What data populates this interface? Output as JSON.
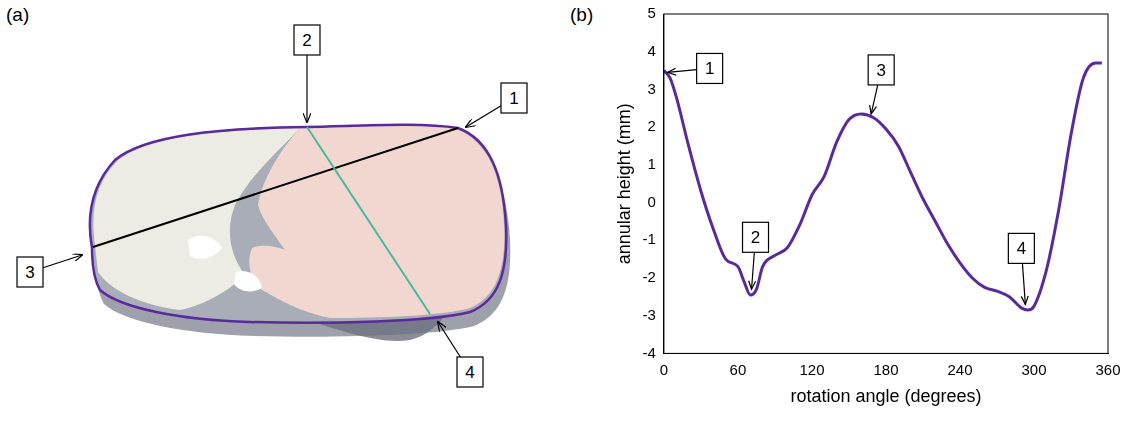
{
  "panel_a": {
    "letter": "(a)",
    "callouts": [
      "1",
      "2",
      "3",
      "4"
    ]
  },
  "chart_data": {
    "panel_label": "(b)",
    "type": "line",
    "x_label": "rotation angle (degrees)",
    "y_label": "annular height (mm)",
    "x": [
      0,
      5,
      10,
      20,
      30,
      40,
      50,
      60,
      65,
      70,
      75,
      80,
      90,
      100,
      110,
      120,
      130,
      140,
      150,
      160,
      170,
      180,
      190,
      200,
      210,
      220,
      230,
      240,
      250,
      260,
      270,
      280,
      290,
      295,
      300,
      310,
      320,
      330,
      340,
      350,
      355
    ],
    "series": [
      {
        "name": "annular height",
        "color": "#5a2a9c",
        "values": [
          3.5,
          3.3,
          2.8,
          1.5,
          0.3,
          -0.7,
          -1.5,
          -1.7,
          -2.1,
          -2.45,
          -2.3,
          -1.7,
          -1.4,
          -1.2,
          -0.6,
          0.2,
          0.7,
          1.6,
          2.2,
          2.35,
          2.25,
          1.95,
          1.5,
          0.8,
          0.1,
          -0.5,
          -1.1,
          -1.6,
          -2.0,
          -2.25,
          -2.35,
          -2.5,
          -2.8,
          -2.85,
          -2.75,
          -1.8,
          -0.2,
          1.8,
          3.3,
          3.7,
          3.7
        ]
      }
    ],
    "xlim": [
      0,
      360
    ],
    "xticks": [
      0,
      60,
      120,
      180,
      240,
      300,
      360
    ],
    "ylim": [
      -4,
      5
    ],
    "yticks": [
      -4,
      -3,
      -2,
      -1,
      0,
      1,
      2,
      3,
      4,
      5
    ],
    "grid": false,
    "annotations": [
      {
        "text": "1",
        "x": 3,
        "y": 3.45
      },
      {
        "text": "2",
        "x": 71,
        "y": -2.3
      },
      {
        "text": "3",
        "x": 168,
        "y": 2.35
      },
      {
        "text": "4",
        "x": 293,
        "y": -2.7
      }
    ]
  }
}
